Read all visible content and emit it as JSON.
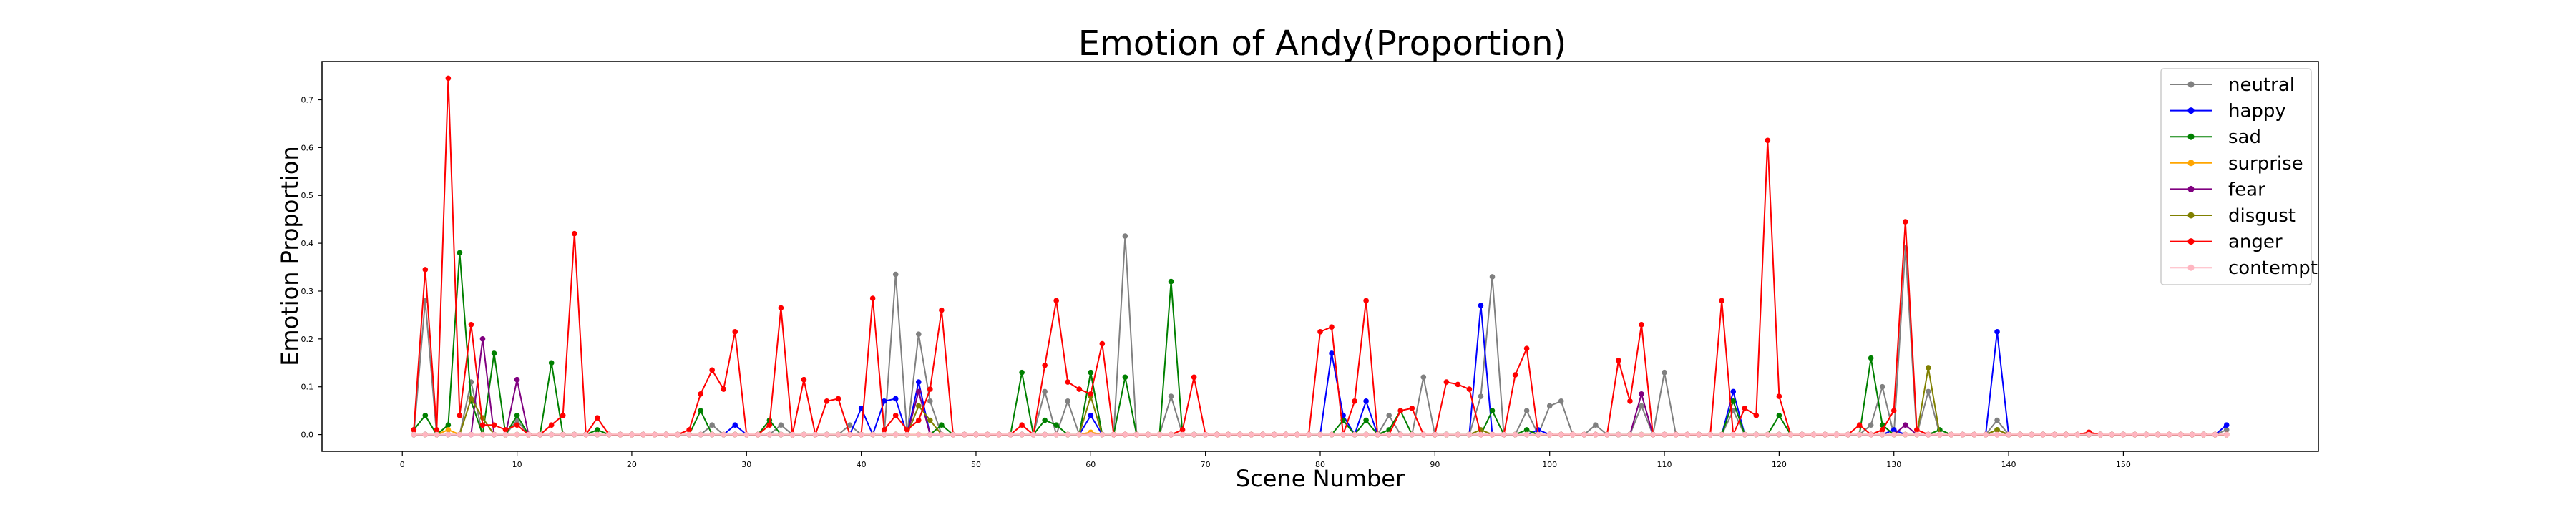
{
  "chart_data": {
    "type": "line",
    "title": "Emotion of Andy(Proportion)",
    "xlabel": "Scene Number",
    "ylabel": "Emotion Proportion",
    "xlim": [
      -7,
      167
    ],
    "ylim": [
      -0.035,
      0.78
    ],
    "xticks": [
      0,
      10,
      20,
      30,
      40,
      50,
      60,
      70,
      80,
      90,
      100,
      110,
      120,
      130,
      140,
      150
    ],
    "yticks": [
      0.0,
      0.1,
      0.2,
      0.3,
      0.4,
      0.5,
      0.6,
      0.7
    ],
    "legend_position": "top-right",
    "grid": false,
    "x": [
      1,
      2,
      3,
      4,
      5,
      6,
      7,
      8,
      9,
      10,
      11,
      12,
      13,
      14,
      15,
      16,
      17,
      18,
      19,
      20,
      21,
      22,
      23,
      24,
      25,
      26,
      27,
      28,
      29,
      30,
      31,
      32,
      33,
      34,
      35,
      36,
      37,
      38,
      39,
      40,
      41,
      42,
      43,
      44,
      45,
      46,
      47,
      48,
      49,
      50,
      51,
      52,
      53,
      54,
      55,
      56,
      57,
      58,
      59,
      60,
      61,
      62,
      63,
      64,
      65,
      66,
      67,
      68,
      69,
      70,
      71,
      72,
      73,
      74,
      75,
      76,
      77,
      78,
      79,
      80,
      81,
      82,
      83,
      84,
      85,
      86,
      87,
      88,
      89,
      90,
      91,
      92,
      93,
      94,
      95,
      96,
      97,
      98,
      99,
      100,
      101,
      102,
      103,
      104,
      105,
      106,
      107,
      108,
      109,
      110,
      111,
      112,
      113,
      114,
      115,
      116,
      117,
      118,
      119,
      120,
      121,
      122,
      123,
      124,
      125,
      126,
      127,
      128,
      129,
      130,
      131,
      132,
      133,
      134,
      135,
      136,
      137,
      138,
      139,
      140,
      141,
      142,
      143,
      144,
      145,
      146,
      147,
      148,
      149,
      150,
      151,
      152,
      153,
      154,
      155,
      156,
      157,
      158,
      159
    ],
    "series": [
      {
        "name": "neutral",
        "color": "#808080",
        "points": {
          "2": 0.28,
          "6": 0.11,
          "10": 0.03,
          "27": 0.02,
          "33": 0.02,
          "39": 0.02,
          "43": 0.335,
          "45": 0.21,
          "46": 0.07,
          "56": 0.09,
          "58": 0.07,
          "60": 0.13,
          "63": 0.415,
          "67": 0.08,
          "86": 0.04,
          "89": 0.12,
          "94": 0.08,
          "95": 0.33,
          "98": 0.05,
          "100": 0.06,
          "101": 0.07,
          "104": 0.02,
          "108": 0.06,
          "110": 0.13,
          "116": 0.05,
          "128": 0.02,
          "129": 0.1,
          "131": 0.39,
          "133": 0.09,
          "139": 0.03,
          "159": 0.01
        }
      },
      {
        "name": "happy",
        "color": "#0000ff",
        "points": {
          "29": 0.02,
          "40": 0.055,
          "42": 0.07,
          "43": 0.075,
          "45": 0.11,
          "60": 0.04,
          "81": 0.17,
          "82": 0.04,
          "84": 0.07,
          "94": 0.27,
          "99": 0.01,
          "116": 0.09,
          "130": 0.01,
          "139": 0.215,
          "159": 0.02
        }
      },
      {
        "name": "sad",
        "color": "#008000",
        "points": {
          "1": 0.01,
          "2": 0.04,
          "4": 0.02,
          "5": 0.38,
          "6": 0.07,
          "8": 0.17,
          "10": 0.04,
          "13": 0.15,
          "17": 0.01,
          "26": 0.05,
          "32": 0.03,
          "47": 0.02,
          "54": 0.13,
          "56": 0.03,
          "57": 0.02,
          "60": 0.13,
          "63": 0.12,
          "67": 0.32,
          "82": 0.03,
          "84": 0.03,
          "86": 0.01,
          "87": 0.05,
          "95": 0.05,
          "98": 0.01,
          "116": 0.07,
          "120": 0.04,
          "128": 0.16,
          "129": 0.02,
          "134": 0.01,
          "139": 0.01
        }
      },
      {
        "name": "surprise",
        "color": "#ffa500",
        "points": {
          "4": 0.01,
          "60": 0.005
        }
      },
      {
        "name": "fear",
        "color": "#800080",
        "points": {
          "7": 0.2,
          "10": 0.115,
          "45": 0.09,
          "108": 0.085,
          "131": 0.02
        }
      },
      {
        "name": "disgust",
        "color": "#808000",
        "points": {
          "6": 0.075,
          "7": 0.035,
          "45": 0.06,
          "46": 0.03,
          "60": 0.08,
          "94": 0.01,
          "133": 0.14,
          "139": 0.01
        }
      },
      {
        "name": "anger",
        "color": "#ff0000",
        "points": {
          "1": 0.01,
          "2": 0.345,
          "3": 0.01,
          "4": 0.745,
          "5": 0.04,
          "6": 0.23,
          "7": 0.02,
          "8": 0.02,
          "9": 0.01,
          "10": 0.02,
          "13": 0.02,
          "14": 0.04,
          "15": 0.42,
          "17": 0.035,
          "25": 0.01,
          "26": 0.085,
          "27": 0.135,
          "28": 0.095,
          "29": 0.215,
          "32": 0.02,
          "33": 0.265,
          "35": 0.115,
          "37": 0.07,
          "38": 0.075,
          "41": 0.285,
          "42": 0.01,
          "43": 0.04,
          "44": 0.01,
          "45": 0.03,
          "46": 0.095,
          "47": 0.26,
          "54": 0.02,
          "56": 0.145,
          "57": 0.28,
          "58": 0.11,
          "59": 0.095,
          "60": 0.085,
          "61": 0.19,
          "68": 0.01,
          "69": 0.12,
          "80": 0.215,
          "81": 0.225,
          "83": 0.07,
          "84": 0.28,
          "87": 0.05,
          "88": 0.055,
          "91": 0.11,
          "92": 0.105,
          "93": 0.095,
          "97": 0.125,
          "98": 0.18,
          "106": 0.155,
          "107": 0.07,
          "108": 0.23,
          "115": 0.28,
          "117": 0.055,
          "118": 0.04,
          "119": 0.615,
          "120": 0.08,
          "127": 0.02,
          "129": 0.01,
          "130": 0.05,
          "131": 0.445,
          "132": 0.01,
          "147": 0.005
        }
      },
      {
        "name": "contempt",
        "color": "#ffb6c1",
        "points": {}
      }
    ]
  }
}
